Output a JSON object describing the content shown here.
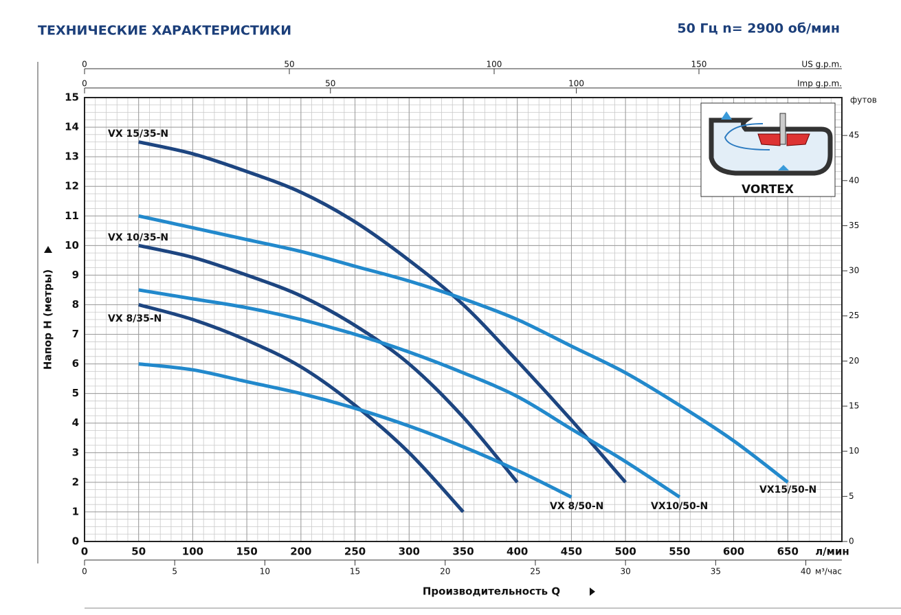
{
  "chart_data": {
    "type": "line",
    "title": "ТЕХНИЧЕСКИЕ ХАРАКТЕРИСТИКИ",
    "subtitle": "50 Гц  n= 2900 об/мин",
    "x_label": "Производительность  Q",
    "x_unit": "л/мин",
    "y_label": "Напор  H (метры)",
    "inset_label": "VORTEX",
    "x": [
      50,
      100,
      150,
      200,
      250,
      300,
      350,
      400,
      450,
      500,
      550,
      600,
      650
    ],
    "xlim": [
      0,
      700
    ],
    "xticks": [
      0,
      50,
      100,
      150,
      200,
      250,
      300,
      350,
      400,
      450,
      500,
      550,
      600,
      650
    ],
    "ylim": [
      0,
      15
    ],
    "yticks": [
      0,
      1,
      2,
      3,
      4,
      5,
      6,
      7,
      8,
      9,
      10,
      11,
      12,
      13,
      14,
      15
    ],
    "grid": true,
    "x_minor_step": 10,
    "y_minor_step": 0.25,
    "secondary_axes": [
      {
        "side": "top",
        "label": "US g.p.m.",
        "lim": [
          0,
          184.9
        ],
        "ticks": [
          0,
          50,
          100,
          150
        ]
      },
      {
        "side": "top",
        "label": "Imp g.p.m.",
        "lim": [
          0,
          154
        ],
        "ticks": [
          0,
          50,
          100
        ]
      },
      {
        "side": "bottom",
        "label": "м³/час",
        "lim": [
          0,
          42
        ],
        "ticks": [
          0,
          5,
          10,
          15,
          20,
          25,
          30,
          35,
          40
        ]
      },
      {
        "side": "right",
        "label": "футов",
        "lim": [
          0,
          49.2
        ],
        "ticks": [
          0,
          5,
          10,
          15,
          20,
          25,
          30,
          35,
          40,
          45
        ]
      }
    ],
    "series": [
      {
        "name": "VX 15/35-N",
        "color": "#1d4580",
        "values": [
          13.5,
          13.1,
          12.5,
          11.8,
          10.8,
          9.5,
          8.0,
          6.1,
          4.1,
          2.0,
          null,
          null,
          null
        ]
      },
      {
        "name": "VX 10/35-N",
        "color": "#1d4580",
        "values": [
          10,
          9.6,
          9.0,
          8.3,
          7.3,
          6.0,
          4.2,
          2.0,
          null,
          null,
          null,
          null,
          null
        ]
      },
      {
        "name": "VX 8/35-N",
        "color": "#1d4580",
        "values": [
          8,
          7.5,
          6.8,
          5.9,
          4.6,
          3.0,
          1.0,
          null,
          null,
          null,
          null,
          null,
          null
        ]
      },
      {
        "name": "VX15/50-N",
        "color": "#2289cc",
        "values": [
          11,
          10.6,
          10.2,
          9.8,
          9.3,
          8.8,
          8.2,
          7.5,
          6.6,
          5.7,
          4.6,
          3.4,
          2.0
        ]
      },
      {
        "name": "VX10/50-N",
        "color": "#2289cc",
        "values": [
          8.5,
          8.2,
          7.9,
          7.5,
          7.0,
          6.4,
          5.7,
          4.9,
          3.8,
          2.7,
          1.5,
          null,
          null
        ]
      },
      {
        "name": "VX 8/50-N",
        "color": "#2289cc",
        "values": [
          6,
          5.8,
          5.4,
          5.0,
          4.5,
          3.9,
          3.2,
          2.4,
          1.5,
          null,
          null,
          null,
          null
        ]
      }
    ]
  }
}
